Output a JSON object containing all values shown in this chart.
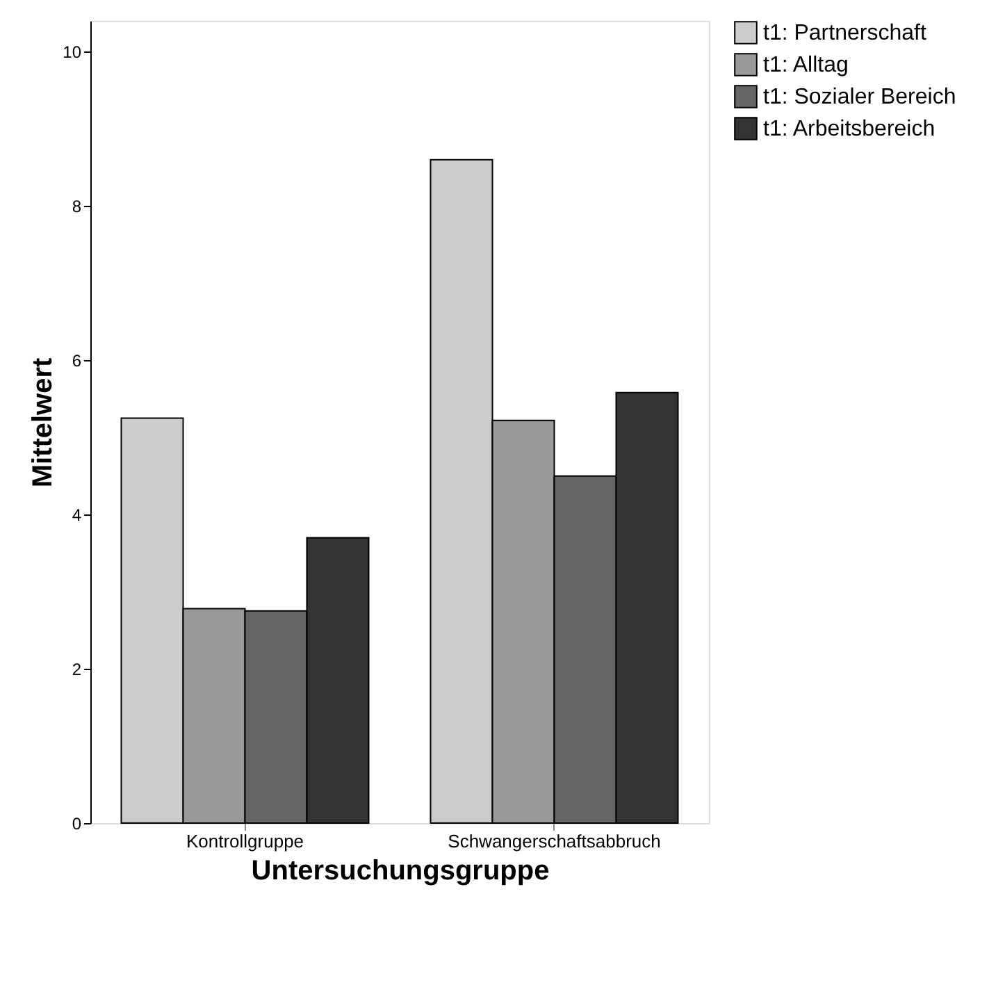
{
  "chart_data": {
    "type": "bar",
    "xlabel": "Untersuchungsgruppe",
    "ylabel": "Mittelwert",
    "categories": [
      "Kontrollgruppe",
      "Schwangerschaftsabbruch"
    ],
    "series": [
      {
        "name": "t1: Partnerschaft",
        "color": "#cccccc",
        "values": [
          5.25,
          8.6
        ]
      },
      {
        "name": "t1: Alltag",
        "color": "#999999",
        "values": [
          2.78,
          5.22
        ]
      },
      {
        "name": "t1: Sozialer Bereich",
        "color": "#666666",
        "values": [
          2.75,
          4.5
        ]
      },
      {
        "name": "t1: Arbeitsbereich",
        "color": "#333333",
        "values": [
          3.7,
          5.58
        ]
      }
    ],
    "ylim": [
      0,
      10.4
    ],
    "yticks": [
      0,
      2,
      4,
      6,
      8,
      10
    ],
    "grid": false,
    "legend": "right"
  }
}
